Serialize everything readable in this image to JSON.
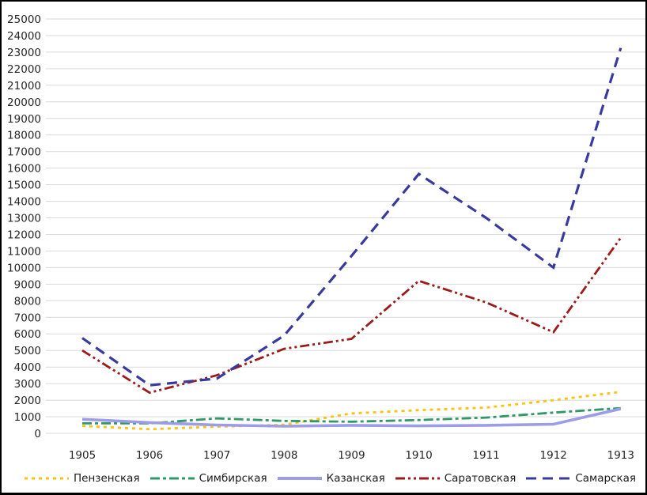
{
  "figure": {
    "background": "#ffffff",
    "border_color": "#000000",
    "grid_color": "#d9d9d9",
    "tick_color": "#262626",
    "legend_text_color": "#1a1a1a"
  },
  "chart_data": {
    "type": "line",
    "title": "",
    "xlabel": "",
    "ylabel": "",
    "x": [
      1905,
      1906,
      1907,
      1908,
      1909,
      1910,
      1911,
      1912,
      1913
    ],
    "ylim": [
      0,
      25000
    ],
    "ytick_step": 1000,
    "grid": true,
    "legend_position": "bottom",
    "series": [
      {
        "name": "Пензенская",
        "color": "#fec209",
        "style": "dotted",
        "values": [
          450,
          250,
          400,
          520,
          1200,
          1400,
          1550,
          2000,
          2500
        ]
      },
      {
        "name": "Симбирская",
        "color": "#2e9965",
        "style": "dash-dot",
        "values": [
          600,
          600,
          900,
          750,
          700,
          800,
          950,
          1250,
          1520
        ]
      },
      {
        "name": "Казанская",
        "color": "#9c9ce8",
        "style": "solid",
        "values": [
          850,
          650,
          500,
          430,
          480,
          450,
          480,
          550,
          1480
        ]
      },
      {
        "name": "Саратовская",
        "color": "#9c1a1a",
        "style": "dash-dot-dot",
        "values": [
          5000,
          2450,
          3500,
          5100,
          5700,
          9200,
          7900,
          6100,
          11800
        ]
      },
      {
        "name": "Самарская",
        "color": "#3a3a9e",
        "style": "dashed",
        "values": [
          5750,
          2900,
          3300,
          5900,
          10700,
          15650,
          13000,
          10000,
          23250
        ]
      }
    ]
  }
}
